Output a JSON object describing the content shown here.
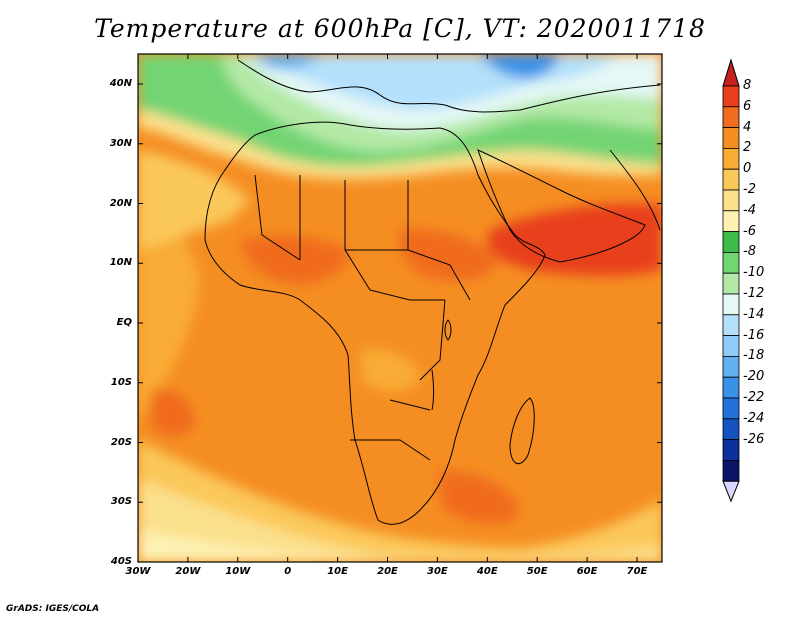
{
  "title": "Temperature at 600hPa [C], VT: 2020011718",
  "credit": "GrADS: IGES/COLA",
  "map": {
    "lat_ticks": [
      "40N",
      "30N",
      "20N",
      "10N",
      "EQ",
      "10S",
      "20S",
      "30S",
      "40S"
    ],
    "lon_ticks": [
      "30W",
      "20W",
      "10W",
      "0",
      "10E",
      "20E",
      "30E",
      "40E",
      "50E",
      "60E",
      "70E"
    ],
    "lon_range": [
      -30,
      75
    ],
    "lat_range": [
      -40,
      45
    ]
  },
  "colorbar": {
    "labels": [
      "8",
      "6",
      "4",
      "2",
      "0",
      "-2",
      "-4",
      "-6",
      "-8",
      "-10",
      "-12",
      "-14",
      "-16",
      "-18",
      "-20",
      "-22",
      "-24",
      "-26"
    ],
    "colors": [
      "#e8401c",
      "#f06c1e",
      "#f58e22",
      "#f9ac34",
      "#fbc85a",
      "#fbe08c",
      "#fdf2b4",
      "#3cbb4a",
      "#73d473",
      "#b3e9a6",
      "#e5f8f6",
      "#b4e0fb",
      "#8ecbf6",
      "#62b0f1",
      "#3a92e8",
      "#2071d9",
      "#1553c2",
      "#0c2f99",
      "#0b1466"
    ],
    "top_arrow_color": "#c4201c",
    "bottom_arrow_color": "#d6d6ff"
  }
}
